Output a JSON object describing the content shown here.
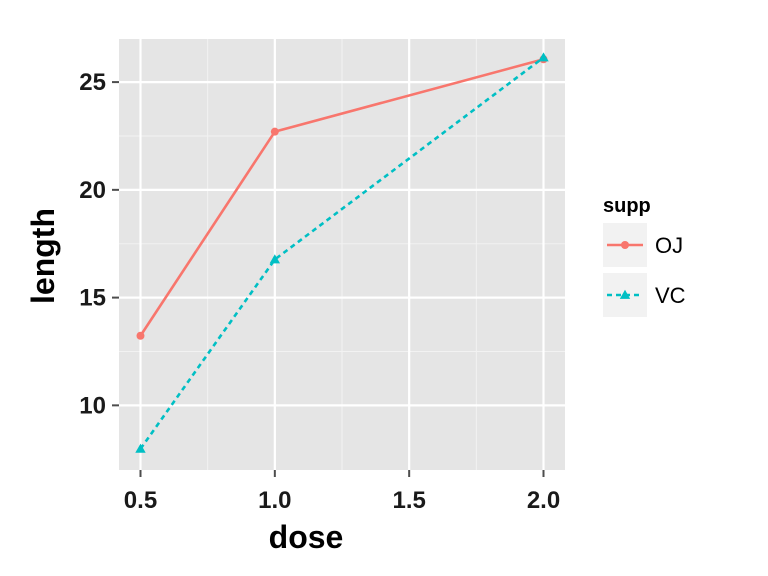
{
  "chart_data": {
    "type": "line",
    "xlabel": "dose",
    "ylabel": "length",
    "xlim": [
      0.42,
      2.08
    ],
    "ylim": [
      7.0,
      27.0
    ],
    "xticks": [
      0.5,
      1.0,
      1.5,
      2.0
    ],
    "xtick_labels": [
      "0.5",
      "1.0",
      "1.5",
      "2.0"
    ],
    "yticks": [
      10,
      15,
      20,
      25
    ],
    "ytick_labels": [
      "10",
      "15",
      "20",
      "25"
    ],
    "grid": true,
    "legend": {
      "title": "supp",
      "position": "right"
    },
    "series": [
      {
        "name": "OJ",
        "color": "#F8766D",
        "line_style": "solid",
        "marker": "circle",
        "x": [
          0.5,
          1.0,
          2.0
        ],
        "y": [
          13.23,
          22.7,
          26.06
        ]
      },
      {
        "name": "VC",
        "color": "#00BFC4",
        "line_style": "dashed",
        "marker": "triangle",
        "x": [
          0.5,
          1.0,
          2.0
        ],
        "y": [
          7.98,
          16.77,
          26.14
        ]
      }
    ]
  }
}
